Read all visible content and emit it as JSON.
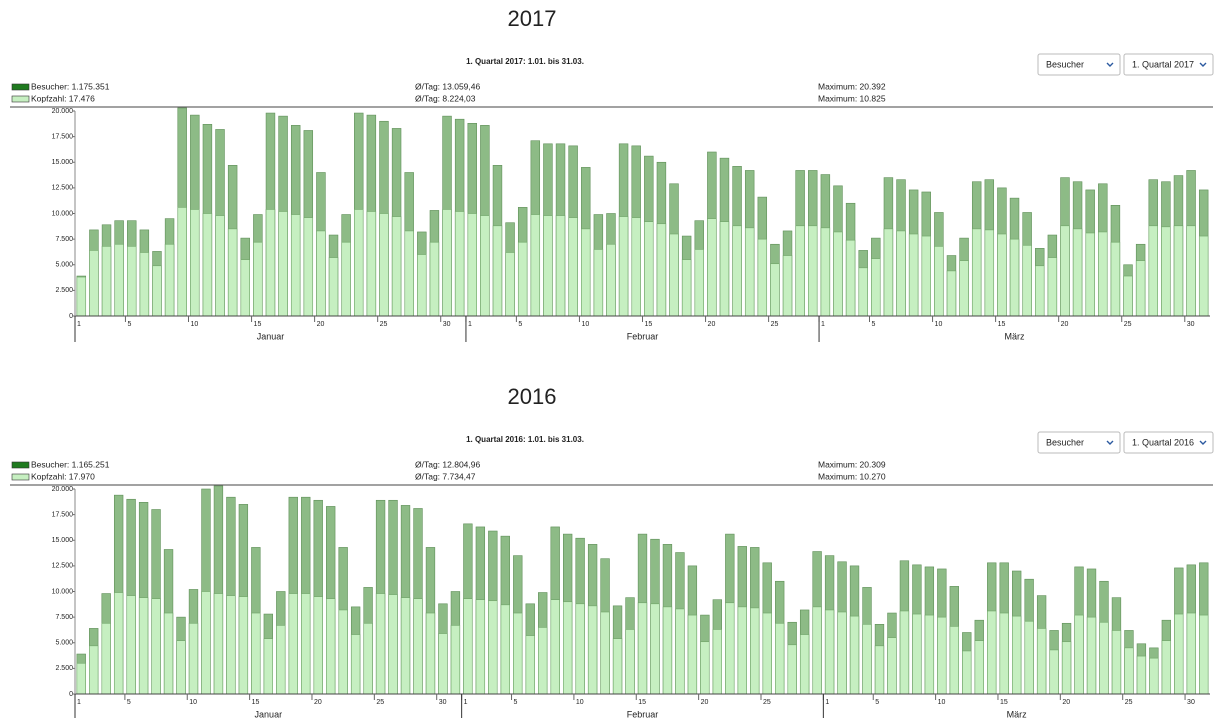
{
  "chart_data": [
    {
      "type": "bar",
      "heading": "2017",
      "title": "1. Quartal 2017: 1.01. bis 31.03.",
      "controls": [
        "Besucher",
        "1. Quartal 2017"
      ],
      "stats": [
        [
          "Ø/Tag: 13.059,46",
          "Maximum: 20.392"
        ],
        [
          "Ø/Tag: 8.224,03",
          "Maximum: 10.825"
        ]
      ],
      "months": [
        "Januar",
        "Februar",
        "März"
      ],
      "categories": [
        1,
        null,
        null,
        null,
        5,
        null,
        null,
        null,
        null,
        10,
        null,
        null,
        null,
        null,
        15,
        null,
        null,
        null,
        null,
        20,
        null,
        null,
        null,
        null,
        25,
        null,
        null,
        null,
        null,
        30,
        null,
        1,
        null,
        null,
        null,
        5,
        null,
        null,
        null,
        null,
        10,
        null,
        null,
        null,
        null,
        15,
        null,
        null,
        null,
        null,
        20,
        null,
        null,
        null,
        null,
        25,
        null,
        null,
        null,
        1,
        null,
        null,
        null,
        5,
        null,
        null,
        null,
        null,
        10,
        null,
        null,
        null,
        null,
        15,
        null,
        null,
        null,
        null,
        20,
        null,
        null,
        null,
        null,
        25,
        null,
        null,
        null,
        null,
        30,
        null
      ],
      "series": [
        {
          "name": "Besucher: 1.175.351",
          "color": "#8dbb86",
          "values": [
            3900,
            8400,
            8900,
            9300,
            9300,
            8400,
            6300,
            9500,
            20300,
            19600,
            18700,
            18200,
            14700,
            7600,
            9900,
            19800,
            19500,
            18600,
            18100,
            14000,
            7900,
            9900,
            19800,
            19600,
            19000,
            18300,
            14000,
            8200,
            10300,
            19500,
            19200,
            18800,
            18600,
            14700,
            9100,
            10600,
            17100,
            16800,
            16800,
            16600,
            14500,
            9900,
            10000,
            16800,
            16600,
            15600,
            15000,
            12900,
            7800,
            9300,
            16000,
            15400,
            14600,
            14200,
            11600,
            7000,
            8300,
            14200,
            14200,
            13800,
            12700,
            11000,
            6400,
            7600,
            13500,
            13300,
            12300,
            12100,
            10100,
            5900,
            7600,
            13100,
            13300,
            12500,
            11500,
            10100,
            6600,
            7900,
            13500,
            13100,
            12300,
            12900,
            10800,
            5000,
            7000,
            13300,
            13100,
            13700,
            14200,
            12300
          ]
        },
        {
          "name": "Kopfzahl: 17.476",
          "color": "#c6efc1",
          "values": [
            3800,
            6400,
            6800,
            7000,
            6800,
            6200,
            4900,
            7000,
            10600,
            10400,
            10000,
            9800,
            8500,
            5500,
            7200,
            10400,
            10200,
            9900,
            9600,
            8300,
            5700,
            7200,
            10400,
            10200,
            10000,
            9700,
            8300,
            6000,
            7200,
            10400,
            10200,
            10000,
            9800,
            8800,
            6200,
            7200,
            9900,
            9800,
            9800,
            9600,
            8500,
            6500,
            7000,
            9700,
            9600,
            9200,
            9000,
            8000,
            5500,
            6500,
            9500,
            9200,
            8800,
            8600,
            7500,
            5100,
            5900,
            8800,
            8800,
            8600,
            8200,
            7400,
            4700,
            5600,
            8500,
            8300,
            8000,
            7800,
            6800,
            4400,
            5400,
            8500,
            8400,
            8000,
            7500,
            6900,
            4900,
            5700,
            8800,
            8500,
            8100,
            8200,
            7200,
            3900,
            5400,
            8800,
            8700,
            8800,
            8800,
            7800
          ]
        }
      ],
      "ylim": [
        0,
        20000
      ],
      "yticks": [
        0,
        {
          "value": 2500,
          "label": "2.500"
        },
        {
          "value": 5000,
          "label": "5.000"
        },
        {
          "value": 7500,
          "label": "7.500"
        },
        {
          "value": 10000,
          "label": "10.000"
        },
        {
          "value": 12500,
          "label": "12.500"
        },
        {
          "value": 15000,
          "label": "15.000"
        },
        {
          "value": 17500,
          "label": "17.500"
        },
        {
          "value": 20000,
          "label": "20.000"
        }
      ]
    },
    {
      "type": "bar",
      "heading": "2016",
      "title": "1. Quartal 2016: 1.01. bis 31.03.",
      "controls": [
        "Besucher",
        "1. Quartal 2016"
      ],
      "stats": [
        [
          "Ø/Tag: 12.804,96",
          "Maximum: 20.309"
        ],
        [
          "Ø/Tag: 7.734,47",
          "Maximum: 10.270"
        ]
      ],
      "months": [
        "Januar",
        "Februar",
        "März"
      ],
      "categories": [
        1,
        null,
        null,
        null,
        5,
        null,
        null,
        null,
        null,
        10,
        null,
        null,
        null,
        null,
        15,
        null,
        null,
        null,
        null,
        20,
        null,
        null,
        null,
        null,
        25,
        null,
        null,
        null,
        null,
        30,
        null,
        1,
        null,
        null,
        null,
        5,
        null,
        null,
        null,
        null,
        10,
        null,
        null,
        null,
        null,
        15,
        null,
        null,
        null,
        null,
        20,
        null,
        null,
        null,
        null,
        25,
        null,
        null,
        null,
        null,
        1,
        null,
        null,
        null,
        5,
        null,
        null,
        null,
        null,
        10,
        null,
        null,
        null,
        null,
        15,
        null,
        null,
        null,
        null,
        20,
        null,
        null,
        null,
        null,
        25,
        null,
        null,
        null,
        null,
        30,
        null
      ],
      "series": [
        {
          "name": "Besucher: 1.165.251",
          "color": "#8dbb86",
          "values": [
            3900,
            6400,
            9800,
            19400,
            19000,
            18700,
            18000,
            14100,
            7500,
            10200,
            20000,
            20300,
            19200,
            18500,
            14300,
            7800,
            10000,
            19200,
            19200,
            18900,
            18300,
            14300,
            8500,
            10400,
            18900,
            18900,
            18400,
            18100,
            14300,
            8800,
            10000,
            16600,
            16300,
            15900,
            15400,
            13500,
            8800,
            9900,
            16300,
            15600,
            15200,
            14600,
            13200,
            8600,
            9400,
            15600,
            15100,
            14600,
            13800,
            12500,
            7700,
            9200,
            15600,
            14400,
            14300,
            12800,
            11000,
            7000,
            8200,
            13900,
            13500,
            12900,
            12500,
            10400,
            6800,
            7900,
            13000,
            12600,
            12400,
            12200,
            10500,
            6000,
            7200,
            12800,
            12800,
            12000,
            11200,
            9600,
            6200,
            6900,
            12400,
            12200,
            11000,
            9400,
            6200,
            4900,
            4500,
            7200,
            12300,
            12600,
            12800
          ]
        },
        {
          "name": "Kopfzahl: 17.970",
          "color": "#c6efc1",
          "values": [
            3000,
            4700,
            6900,
            9900,
            9600,
            9400,
            9300,
            7900,
            5200,
            6900,
            10000,
            9800,
            9600,
            9500,
            7900,
            5400,
            6700,
            9800,
            9800,
            9500,
            9300,
            8200,
            5800,
            6900,
            9800,
            9700,
            9400,
            9300,
            7900,
            5900,
            6700,
            9300,
            9200,
            9100,
            8700,
            7900,
            5700,
            6500,
            9200,
            9000,
            8800,
            8600,
            8000,
            5400,
            6300,
            8900,
            8800,
            8500,
            8300,
            7700,
            5100,
            6300,
            8900,
            8500,
            8400,
            7900,
            6900,
            4800,
            5800,
            8500,
            8200,
            8000,
            7600,
            6800,
            4700,
            5500,
            8100,
            7800,
            7700,
            7500,
            6600,
            4200,
            5200,
            8100,
            7900,
            7600,
            7100,
            6400,
            4300,
            5100,
            7700,
            7500,
            7000,
            6200,
            4500,
            3700,
            3500,
            5200,
            7800,
            7900,
            7700
          ]
        }
      ],
      "ylim": [
        0,
        20000
      ],
      "yticks": [
        0,
        {
          "value": 2500,
          "label": "2.500"
        },
        {
          "value": 5000,
          "label": "5.000"
        },
        {
          "value": 7500,
          "label": "7.500"
        },
        {
          "value": 10000,
          "label": "10.000"
        },
        {
          "value": 12500,
          "label": "12.500"
        },
        {
          "value": 15000,
          "label": "15.000"
        },
        {
          "value": 17500,
          "label": "17.500"
        },
        {
          "value": 20000,
          "label": "20.000"
        }
      ]
    }
  ]
}
